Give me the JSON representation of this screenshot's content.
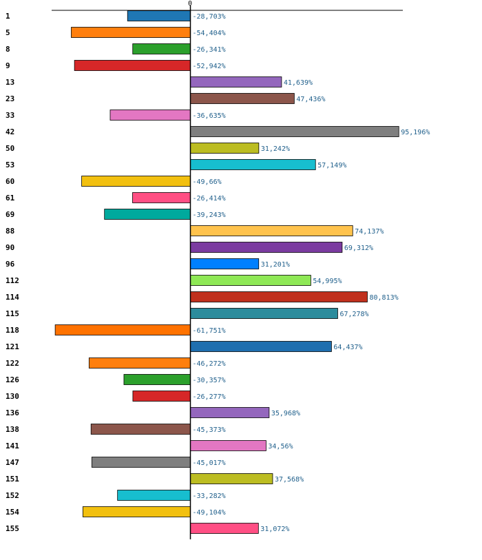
{
  "chart_data": {
    "type": "bar",
    "orientation": "horizontal",
    "zero_tick_label": "0",
    "value_suffix": "%",
    "xlim": [
      -63,
      101
    ],
    "categories": [
      "1",
      "5",
      "8",
      "9",
      "13",
      "23",
      "33",
      "42",
      "50",
      "53",
      "60",
      "61",
      "69",
      "88",
      "90",
      "96",
      "112",
      "114",
      "115",
      "118",
      "121",
      "122",
      "126",
      "130",
      "136",
      "138",
      "141",
      "147",
      "151",
      "152",
      "154",
      "155"
    ],
    "values": [
      -28.703,
      -54.404,
      -26.341,
      -52.942,
      41.639,
      47.436,
      -36.635,
      95.196,
      31.242,
      57.149,
      -49.66,
      -26.414,
      -39.243,
      74.137,
      69.312,
      31.201,
      54.995,
      80.813,
      67.278,
      -61.751,
      64.437,
      -46.272,
      -30.357,
      -26.277,
      35.968,
      -45.373,
      34.56,
      -45.017,
      37.568,
      -33.282,
      -49.104,
      31.072
    ],
    "value_labels": [
      "-28,703%",
      "-54,404%",
      "-26,341%",
      "-52,942%",
      "41,639%",
      "47,436%",
      "-36,635%",
      "95,196%",
      "31,242%",
      "57,149%",
      "-49,66%",
      "-26,414%",
      "-39,243%",
      "74,137%",
      "69,312%",
      "31,201%",
      "54,995%",
      "80,813%",
      "67,278%",
      "-61,751%",
      "64,437%",
      "-46,272%",
      "-30,357%",
      "-26,277%",
      "35,968%",
      "-45,373%",
      "34,56%",
      "-45,017%",
      "37,568%",
      "-33,282%",
      "-49,104%",
      "31,072%"
    ],
    "colors": [
      "#1f77b4",
      "#ff7f0e",
      "#2ca02c",
      "#d62728",
      "#9467bd",
      "#8c564b",
      "#e377c2",
      "#7f7f7f",
      "#bcbd22",
      "#17becf",
      "#f2c00f",
      "#ff4f84",
      "#00a99d",
      "#ffc34d",
      "#7b3ba0",
      "#0080ff",
      "#8ee855",
      "#c0301d",
      "#2c8c9c",
      "#ff7200",
      "#1f6faf",
      "#ff7f0e",
      "#2ca02c",
      "#d62728",
      "#9467bd",
      "#8c564b",
      "#e377c2",
      "#7f7f7f",
      "#bcbd22",
      "#17becf",
      "#f2c00f",
      "#ff4f84"
    ]
  }
}
